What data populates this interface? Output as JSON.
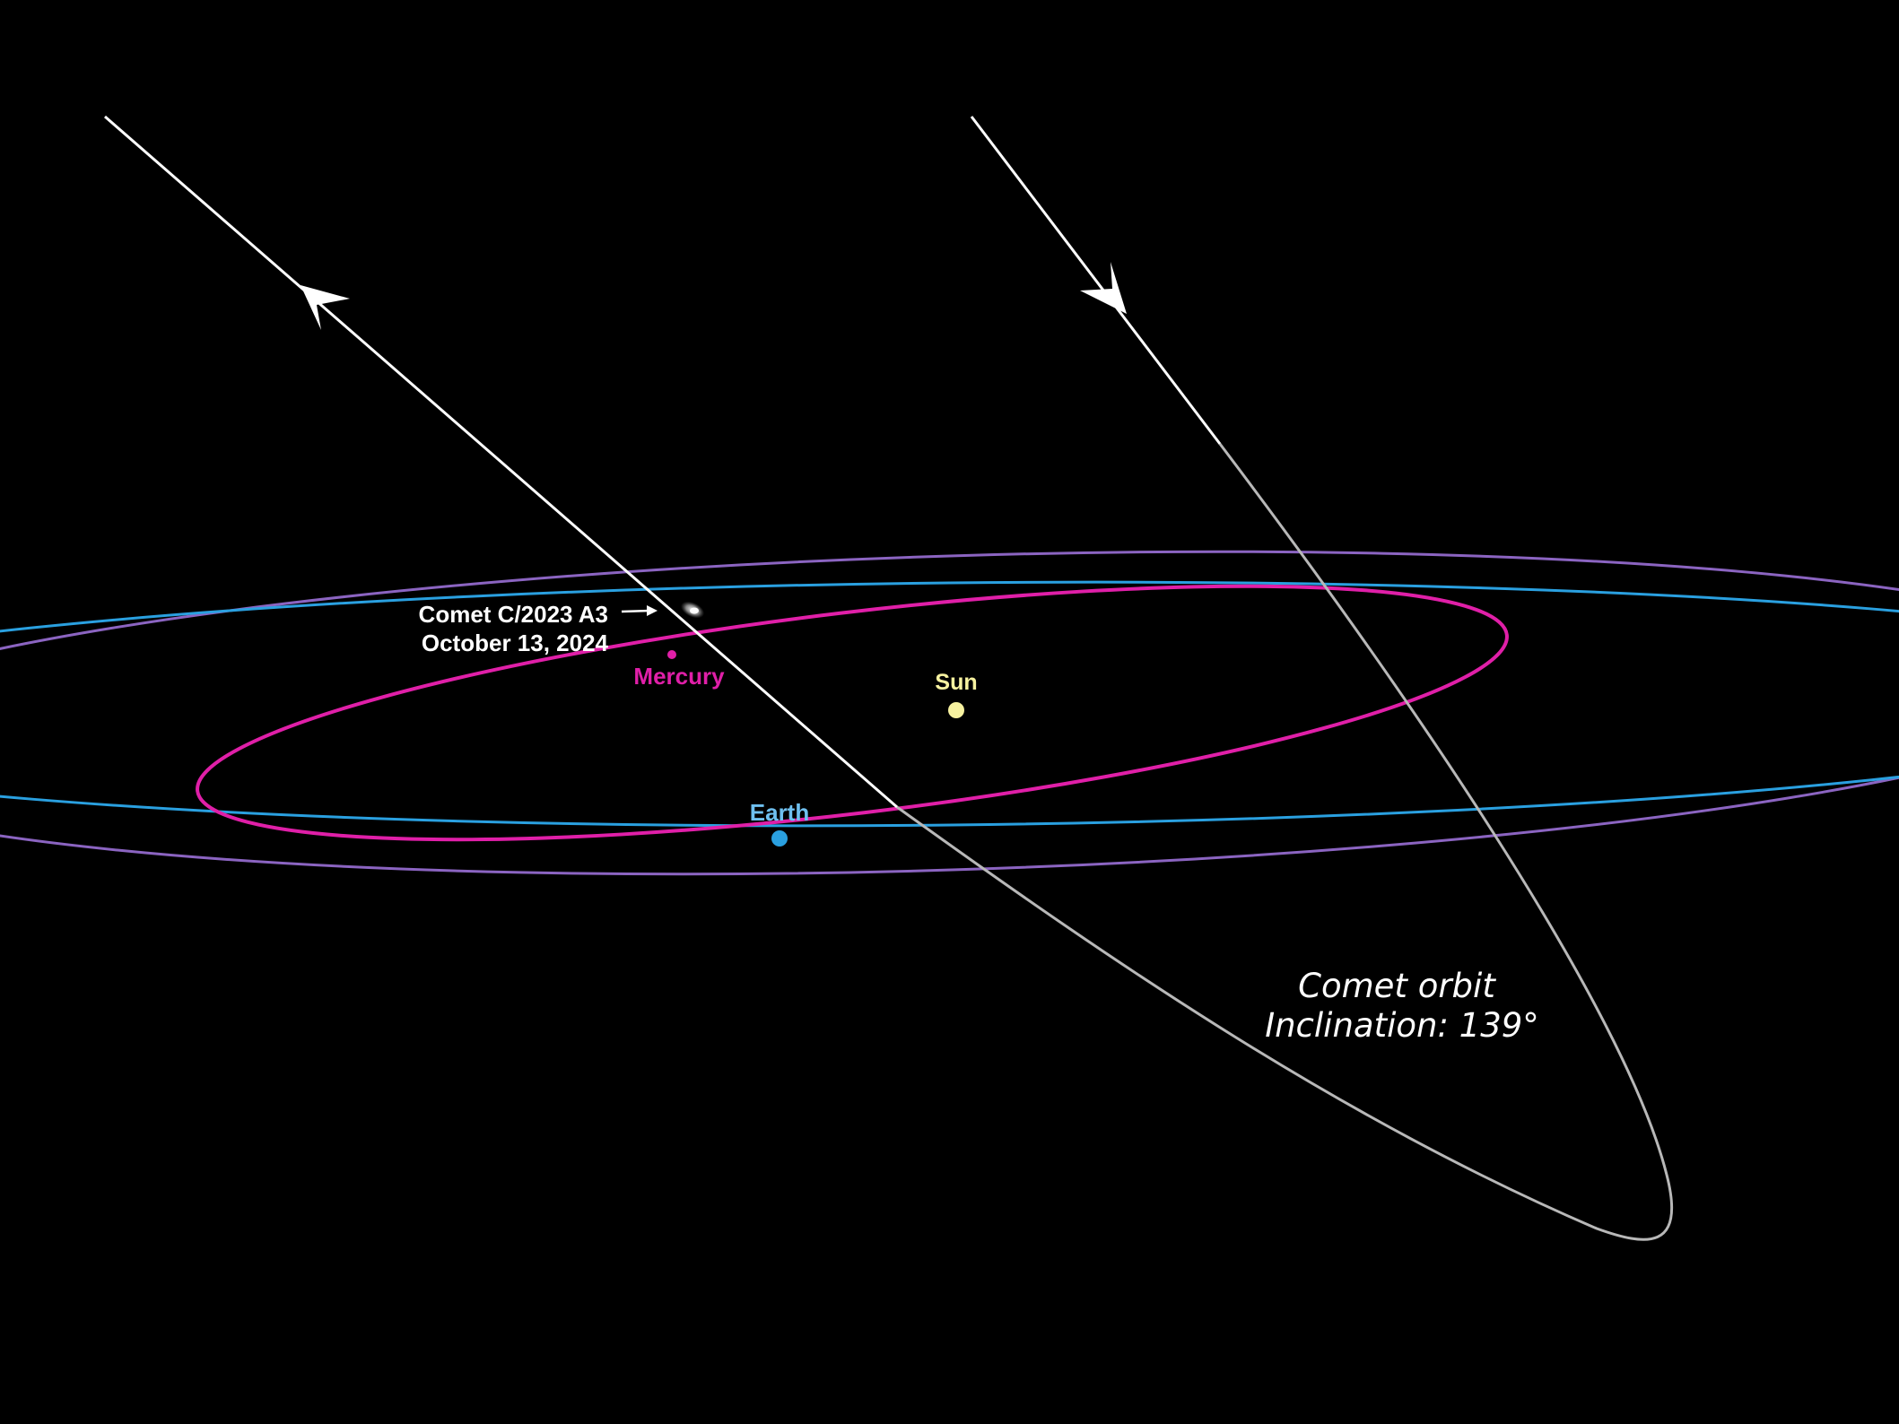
{
  "labels": {
    "comet_name": "Comet C/2023 A3",
    "comet_date": "October 13, 2024",
    "mercury": "Mercury",
    "sun": "Sun",
    "earth": "Earth",
    "orbit_title": "Comet orbit",
    "orbit_inclination": "Inclination: 139°"
  },
  "colors": {
    "background": "#000000",
    "comet_orbit": "#ffffff",
    "comet_orbit_far": "#b8b8b8",
    "mercury": "#e01fa8",
    "earth": "#2aa0e0",
    "earth_label": "#6fc0f0",
    "outer_orbit": "#9a6fd6",
    "sun": "#f7f2a0"
  },
  "icons": {
    "direction_arrows": "arrowhead-icon",
    "pointer": "right-arrow-icon"
  }
}
